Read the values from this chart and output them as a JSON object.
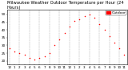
{
  "title": "Milwaukee Weather Outdoor Temperature per Hour (24 Hours)",
  "background_color": "#ffffff",
  "dot_color": "#ff0000",
  "hours": [
    0,
    1,
    2,
    3,
    4,
    5,
    6,
    7,
    8,
    9,
    10,
    11,
    12,
    13,
    14,
    15,
    16,
    17,
    18,
    19,
    20,
    21,
    22,
    23
  ],
  "temps": [
    28,
    26,
    25,
    24,
    22,
    21,
    22,
    23,
    25,
    30,
    34,
    38,
    42,
    46,
    47,
    49,
    50,
    48,
    44,
    40,
    36,
    32,
    28,
    24
  ],
  "ylim": [
    18,
    53
  ],
  "xlim": [
    -0.5,
    23.5
  ],
  "title_fontsize": 3.8,
  "tick_fontsize": 3.0,
  "legend_fontsize": 3.2,
  "grid_color": "#999999",
  "figsize": [
    1.6,
    0.87
  ],
  "dpi": 100,
  "xticks": [
    0,
    1,
    2,
    3,
    4,
    5,
    6,
    7,
    8,
    9,
    10,
    11,
    12,
    13,
    14,
    15,
    16,
    17,
    18,
    19,
    20,
    21,
    22,
    23
  ],
  "xtick_labels": [
    "12",
    "1",
    "2",
    "3",
    "4",
    "5",
    "6",
    "7",
    "8",
    "9",
    "10",
    "11",
    "12",
    "1",
    "2",
    "3",
    "4",
    "5",
    "6",
    "7",
    "8",
    "9",
    "10",
    "11"
  ],
  "yticks": [
    20,
    25,
    30,
    35,
    40,
    45,
    50
  ],
  "legend_text": "Outdoor",
  "legend_box_color": "#ff0000",
  "grid_positions": [
    0,
    2,
    4,
    6,
    8,
    10,
    12,
    14,
    16,
    18,
    20,
    22
  ]
}
